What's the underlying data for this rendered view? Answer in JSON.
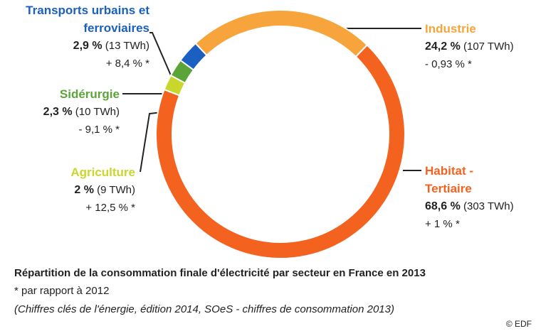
{
  "chart_data": {
    "type": "pie",
    "donut": true,
    "title": "Répartition de la consommation finale d'électricité par secteur en France en 2013",
    "subtitle": "* par rapport à 2012",
    "source": "(Chiffres clés de l'énergie, édition 2014, SOeS - chiffres de consommation 2013)",
    "credit": "© EDF",
    "categories": [
      "Industrie",
      "Habitat - Tertiaire",
      "Agriculture",
      "Sidérurgie",
      "Transports urbains et ferroviaires"
    ],
    "values": [
      24.2,
      68.6,
      2,
      2.3,
      2.9
    ],
    "value_labels": [
      "24,2 %",
      "68,6 %",
      "2 %",
      "2,3 %",
      "2,9 %"
    ],
    "energy_labels": [
      "(107 TWh)",
      "(303 TWh)",
      "(9 TWh)",
      "(10 TWh)",
      "(13 TWh)"
    ],
    "change_labels": [
      "- 0,93 % *",
      "+ 1 % *",
      "+ 12,5 % *",
      "- 9,1 % *",
      "+ 8,4 % *"
    ],
    "colors": [
      "#f7a43c",
      "#f4621f",
      "#c9d62c",
      "#5ba43a",
      "#1b5fc0"
    ]
  }
}
